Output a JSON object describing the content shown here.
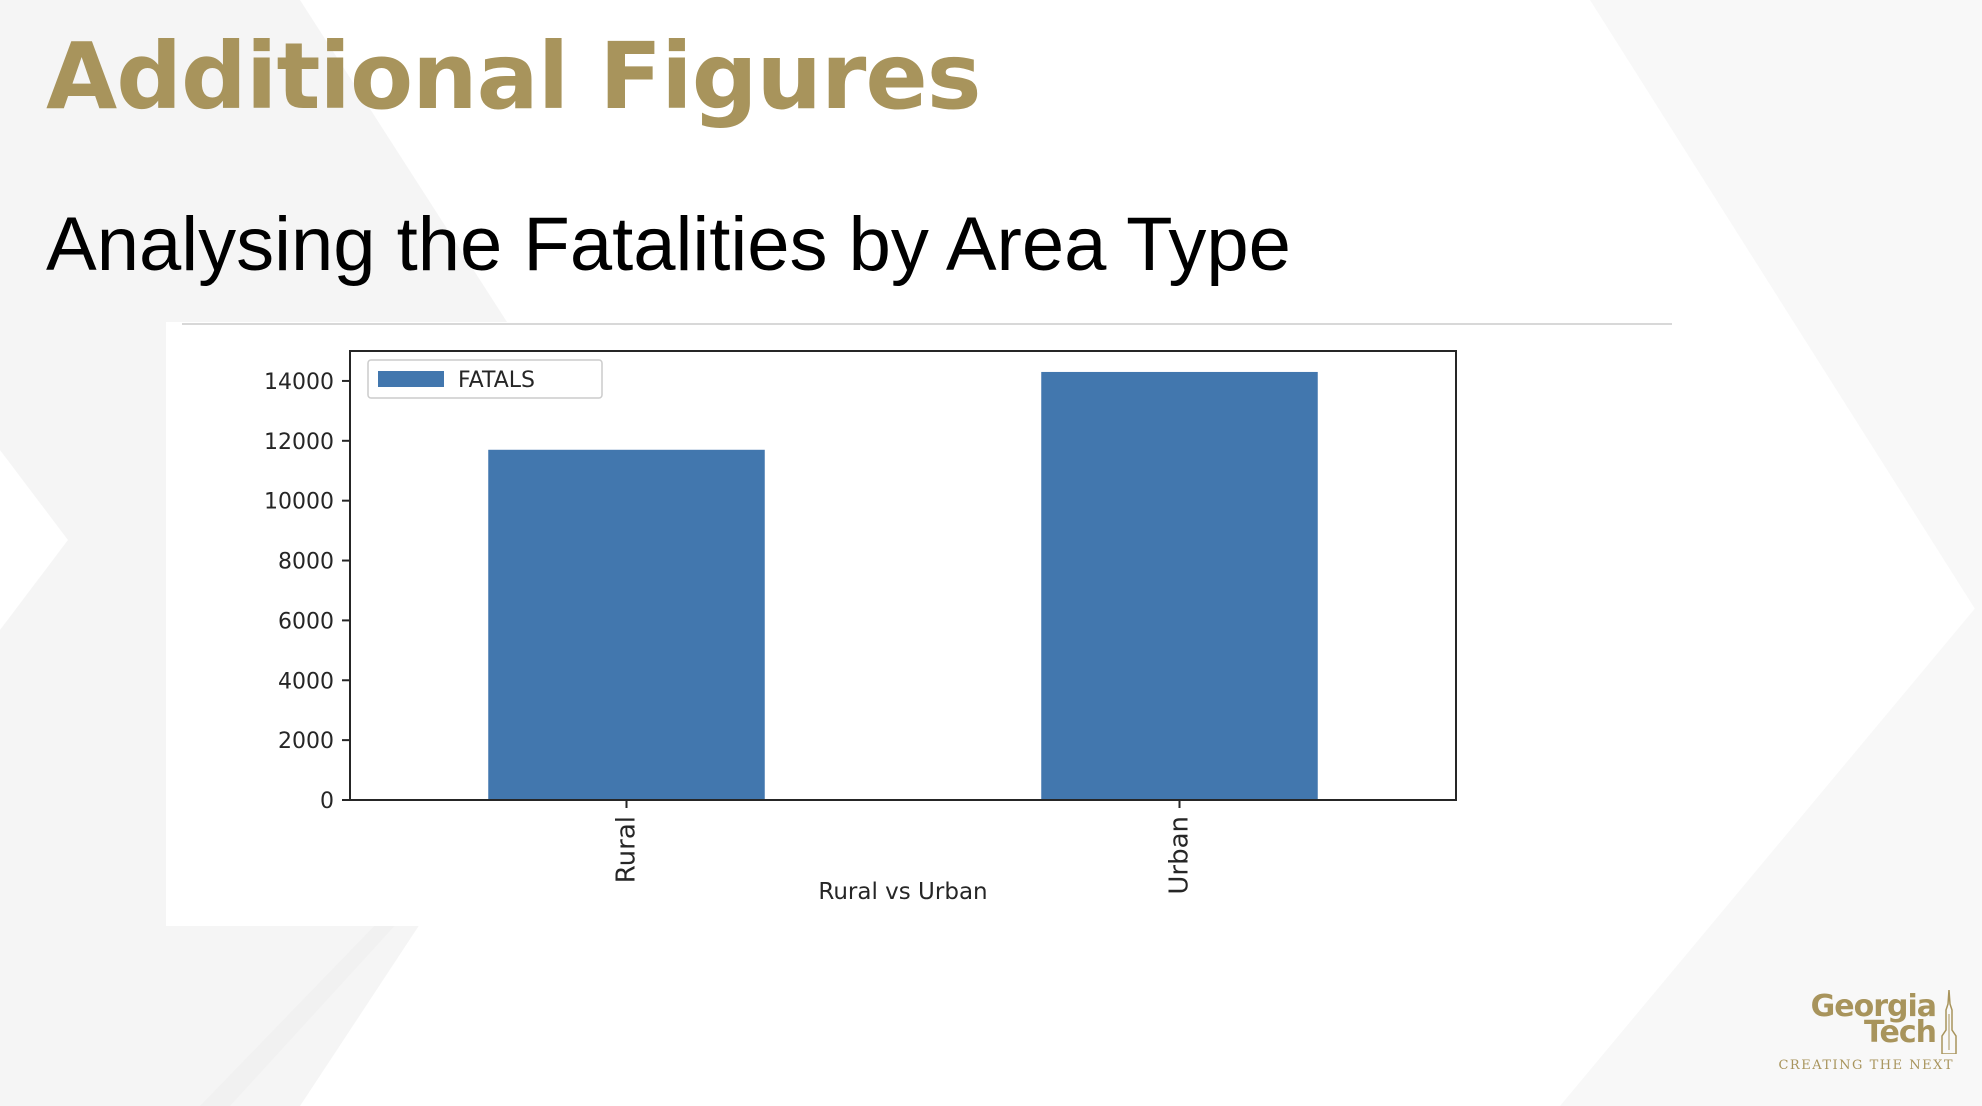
{
  "slide": {
    "title": "Additional Figures",
    "subtitle": "Analysing the Fatalities by Area Type"
  },
  "colors": {
    "title": "#a8945c",
    "bar": "#4277ae",
    "axis": "#262626"
  },
  "chart_data": {
    "type": "bar",
    "categories": [
      "Rural",
      "Urban"
    ],
    "series": [
      {
        "name": "FATALS",
        "values": [
          11700,
          14300
        ]
      }
    ],
    "xlabel": "Rural vs Urban",
    "ylabel": "",
    "ylim": [
      0,
      15000
    ],
    "yticks": [
      0,
      2000,
      4000,
      6000,
      8000,
      10000,
      12000,
      14000
    ],
    "legend": "top-left",
    "grid": false
  },
  "logo": {
    "line1": "Georgia",
    "line2": "Tech",
    "tagline": "CREATING THE NEXT"
  }
}
